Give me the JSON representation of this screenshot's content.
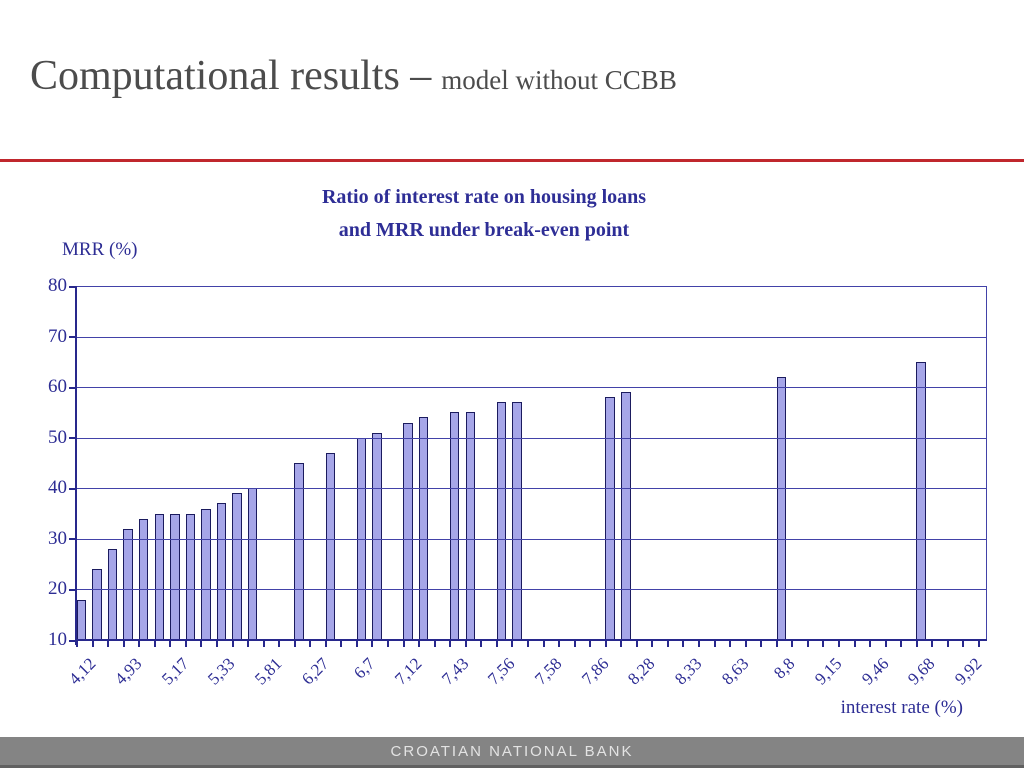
{
  "header": {
    "title_main": "Computational results –",
    "title_sub": "model without CCBB"
  },
  "divider_color": "#c0272d",
  "chart_data": {
    "type": "bar",
    "title_line1": "Ratio of interest rate on housing loans",
    "title_line2": "and MRR under break-even point",
    "y_axis_title": "MRR (%)",
    "x_axis_title": "interest rate (%)",
    "ylim": [
      10,
      80
    ],
    "y_ticks": [
      10,
      20,
      30,
      40,
      50,
      60,
      70,
      80
    ],
    "grid": true,
    "n_categories": 59,
    "x_label_every_n_categories": 3,
    "x_tick_labels": [
      "4,12",
      "4,93",
      "5,17",
      "5,33",
      "5,81",
      "6,27",
      "6,7",
      "7,12",
      "7,43",
      "7,56",
      "7,58",
      "7,86",
      "8,28",
      "8,33",
      "8,63",
      "8,8",
      "9,15",
      "9,46",
      "9,68",
      "9,92"
    ],
    "bars": [
      {
        "category": 0,
        "value": 18
      },
      {
        "category": 1,
        "value": 24
      },
      {
        "category": 2,
        "value": 28
      },
      {
        "category": 3,
        "value": 32
      },
      {
        "category": 4,
        "value": 34
      },
      {
        "category": 5,
        "value": 35
      },
      {
        "category": 6,
        "value": 35
      },
      {
        "category": 7,
        "value": 35
      },
      {
        "category": 8,
        "value": 36
      },
      {
        "category": 9,
        "value": 37
      },
      {
        "category": 10,
        "value": 39
      },
      {
        "category": 11,
        "value": 40
      },
      {
        "category": 14,
        "value": 45
      },
      {
        "category": 16,
        "value": 47
      },
      {
        "category": 18,
        "value": 50
      },
      {
        "category": 19,
        "value": 51
      },
      {
        "category": 21,
        "value": 53
      },
      {
        "category": 22,
        "value": 54
      },
      {
        "category": 24,
        "value": 55
      },
      {
        "category": 25,
        "value": 55
      },
      {
        "category": 27,
        "value": 57
      },
      {
        "category": 28,
        "value": 57
      },
      {
        "category": 34,
        "value": 58
      },
      {
        "category": 35,
        "value": 59
      },
      {
        "category": 45,
        "value": 62
      },
      {
        "category": 54,
        "value": 65
      }
    ],
    "bar_fill": "#a6a6e8",
    "bar_border": "#1b1b5e",
    "grid_color": "#4242a8",
    "text_color": "#2d2d94"
  },
  "footer": {
    "text": "CROATIAN NATIONAL BANK"
  }
}
